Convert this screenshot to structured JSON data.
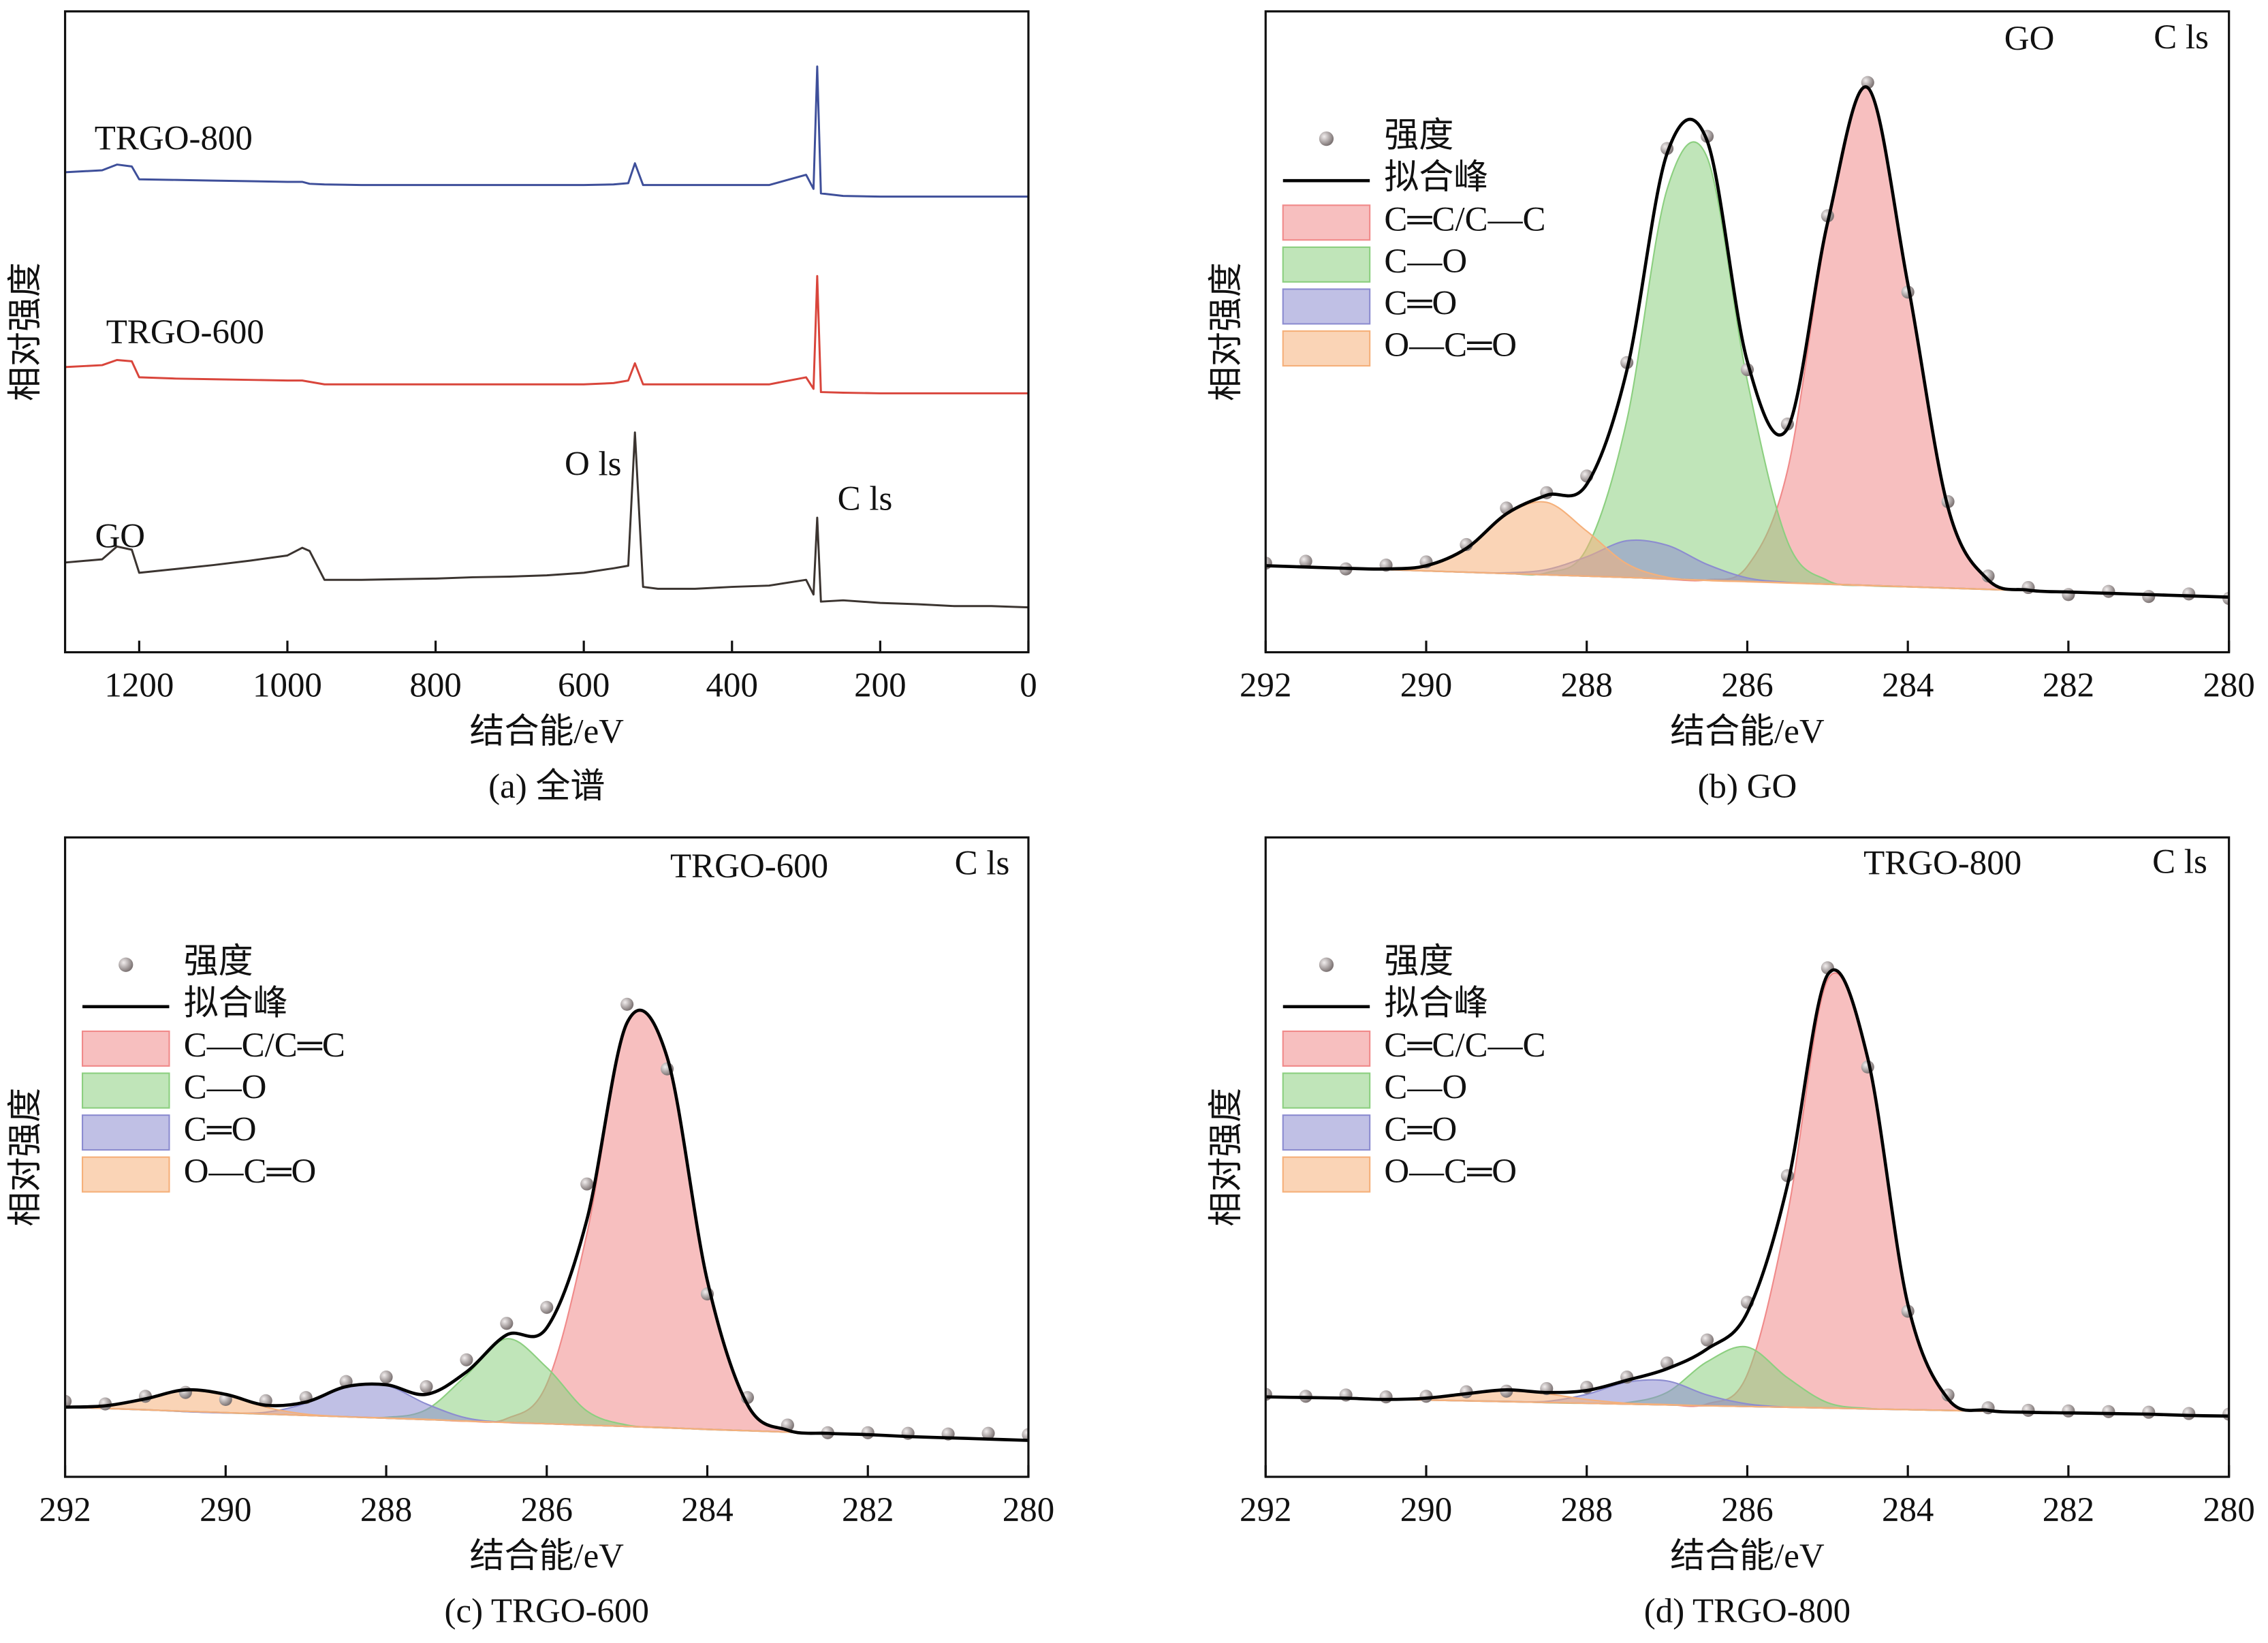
{
  "chart_data": [
    {
      "type": "line",
      "title": "(a) 全谱",
      "x_label": "结合能/eV",
      "y_label": "相对强度",
      "annotations": [
        "O ls",
        "C ls"
      ],
      "x": [
        1300,
        1250,
        1230,
        1210,
        1200,
        1150,
        1100,
        1050,
        1000,
        980,
        970,
        950,
        900,
        850,
        800,
        750,
        700,
        650,
        600,
        560,
        540,
        531,
        520,
        500,
        450,
        400,
        350,
        300,
        290,
        285,
        280,
        250,
        200,
        150,
        100,
        50,
        0
      ],
      "xlim": [
        1300,
        0
      ],
      "xticks": [
        1200,
        1000,
        800,
        600,
        400,
        200,
        0
      ],
      "ylim": [
        0,
        100
      ],
      "series": [
        {
          "name": "GO",
          "color": "#3b3430",
          "values": [
            14.0,
            14.5,
            16.5,
            16.0,
            12.4,
            13.0,
            13.6,
            14.3,
            15.1,
            16.3,
            15.8,
            11.3,
            11.3,
            11.4,
            11.5,
            11.7,
            11.8,
            12.0,
            12.4,
            13.1,
            13.5,
            34.3,
            10.2,
            9.9,
            9.9,
            10.2,
            10.4,
            11.3,
            9.0,
            21.0,
            7.9,
            8.1,
            7.7,
            7.5,
            7.2,
            7.2,
            7.0
          ]
        },
        {
          "name": "TRGO-600",
          "color": "#d9453b",
          "values": [
            44.5,
            44.8,
            45.6,
            45.4,
            42.9,
            42.7,
            42.6,
            42.5,
            42.4,
            42.4,
            42.2,
            41.8,
            41.8,
            41.8,
            41.8,
            41.8,
            41.8,
            41.8,
            41.8,
            42.0,
            42.4,
            45.1,
            41.8,
            41.8,
            41.8,
            41.8,
            41.8,
            42.9,
            41.1,
            58.7,
            40.6,
            40.5,
            40.4,
            40.4,
            40.4,
            40.4,
            40.4
          ]
        },
        {
          "name": "TRGO-800",
          "color": "#3e4f9a",
          "values": [
            74.9,
            75.2,
            76.1,
            75.8,
            73.8,
            73.7,
            73.6,
            73.5,
            73.4,
            73.4,
            73.1,
            73.0,
            72.9,
            72.9,
            72.9,
            72.9,
            72.9,
            72.9,
            72.9,
            73.0,
            73.2,
            76.3,
            72.9,
            72.9,
            72.9,
            72.9,
            72.9,
            74.5,
            72.3,
            91.4,
            71.6,
            71.2,
            71.1,
            71.1,
            71.1,
            71.1,
            71.1
          ]
        }
      ]
    },
    {
      "type": "area",
      "title": "(b) GO",
      "x_label": "结合能/eV",
      "y_label": "相对强度",
      "annotations": [
        "GO",
        "C ls"
      ],
      "legend": "upper left",
      "x": [
        292,
        291.5,
        291,
        290.5,
        290,
        289.5,
        289,
        288.5,
        288,
        287.5,
        287,
        286.5,
        286,
        285.5,
        285,
        284.5,
        284,
        283.5,
        283,
        282.5,
        282,
        281.5,
        281,
        280.5,
        280
      ],
      "xlim": [
        292,
        280
      ],
      "xticks": [
        292,
        290,
        288,
        286,
        284,
        282,
        280
      ],
      "ylim": [
        0,
        100
      ],
      "series": [
        {
          "name": "强度",
          "type": "scatter",
          "color": "#7d7474",
          "values": [
            13.9,
            14.2,
            13.0,
            13.6,
            14.1,
            16.8,
            22.5,
            24.9,
            27.5,
            45.2,
            78.6,
            80.5,
            44.1,
            35.6,
            68.1,
            88.9,
            56.2,
            23.5,
            11.9,
            10.1,
            9.0,
            9.5,
            8.7,
            9.1,
            8.4
          ]
        },
        {
          "name": "拟合峰",
          "type": "line",
          "color": "#000000",
          "values": [
            13.5,
            13.3,
            13.1,
            13.0,
            13.5,
            16.2,
            21.6,
            24.5,
            26.2,
            44.0,
            77.8,
            79.8,
            45.4,
            34.9,
            67.0,
            88.1,
            57.5,
            22.6,
            11.3,
            9.7,
            9.4,
            9.2,
            9.0,
            8.8,
            8.6
          ]
        },
        {
          "name": "C═C/C—C",
          "type": "area",
          "color": "#f08a8a",
          "values": [
            13.5,
            13.3,
            13.1,
            12.9,
            12.7,
            12.5,
            12.3,
            12.1,
            11.9,
            11.7,
            11.4,
            11.3,
            13.4,
            28.3,
            66.4,
            88.1,
            57.5,
            22.6,
            11.3,
            9.7,
            9.4,
            9.2,
            9.0,
            8.8,
            8.6
          ]
        },
        {
          "name": "C—O",
          "type": "area",
          "color": "#8ccf80",
          "values": [
            13.5,
            13.3,
            13.1,
            12.9,
            12.7,
            12.5,
            12.3,
            12.4,
            16.2,
            36.2,
            72.2,
            77.2,
            42.4,
            17.3,
            11.2,
            10.4,
            10.2,
            10.0,
            9.8,
            9.6,
            9.4,
            9.2,
            9.0,
            8.8,
            8.6
          ]
        },
        {
          "name": "C═O",
          "type": "area",
          "color": "#8c8cd0",
          "values": [
            13.5,
            13.3,
            13.1,
            12.9,
            12.7,
            12.5,
            12.4,
            12.9,
            14.9,
            17.4,
            16.7,
            13.7,
            11.6,
            10.9,
            10.6,
            10.4,
            10.2,
            10.0,
            9.8,
            9.6,
            9.4,
            9.2,
            9.0,
            8.8,
            8.6
          ]
        },
        {
          "name": "O—C═O",
          "type": "area",
          "color": "#f5b07a",
          "values": [
            13.5,
            13.3,
            13.1,
            13.0,
            13.5,
            16.2,
            21.5,
            23.4,
            18.9,
            13.8,
            11.7,
            11.2,
            11.0,
            10.8,
            10.6,
            10.4,
            10.2,
            10.0,
            9.8,
            9.6,
            9.4,
            9.2,
            9.0,
            8.8,
            8.6
          ]
        }
      ]
    },
    {
      "type": "area",
      "title": "(c) TRGO-600",
      "x_label": "结合能/eV",
      "y_label": "相对强度",
      "annotations": [
        "TRGO-600",
        "C ls"
      ],
      "legend": "upper left",
      "x": [
        292,
        291.5,
        291,
        290.5,
        290,
        289.5,
        289,
        288.5,
        288,
        287.5,
        287,
        286.5,
        286,
        285.5,
        285,
        284.5,
        284,
        283.5,
        283,
        282.5,
        282,
        281.5,
        281,
        280.5,
        280
      ],
      "xlim": [
        292,
        280
      ],
      "xticks": [
        292,
        290,
        288,
        286,
        284,
        282,
        280
      ],
      "ylim": [
        0,
        100
      ],
      "series": [
        {
          "name": "强度",
          "type": "scatter",
          "color": "#7d7474",
          "values": [
            11.8,
            11.4,
            12.6,
            13.2,
            12.1,
            11.9,
            12.4,
            14.9,
            15.6,
            14.1,
            18.3,
            24.0,
            26.5,
            45.8,
            73.9,
            63.8,
            28.6,
            12.4,
            8.1,
            6.9,
            6.9,
            6.8,
            6.7,
            6.8,
            6.6
          ]
        },
        {
          "name": "拟合峰",
          "type": "line",
          "color": "#000000",
          "values": [
            10.9,
            11.1,
            12.2,
            13.6,
            12.9,
            11.2,
            11.7,
            14.1,
            14.4,
            12.9,
            16.4,
            22.2,
            23.3,
            40.2,
            71.0,
            65.6,
            30.7,
            11.3,
            7.3,
            6.8,
            6.6,
            6.3,
            6.1,
            5.9,
            5.7
          ]
        },
        {
          "name": "C—C/C═C",
          "type": "area",
          "color": "#f08a8a",
          "values": [
            10.9,
            10.7,
            10.5,
            10.2,
            10.0,
            9.8,
            9.6,
            9.4,
            9.2,
            9.0,
            8.7,
            9.1,
            14.5,
            38.0,
            70.8,
            65.6,
            30.7,
            11.3,
            7.3,
            6.8,
            6.6,
            6.3,
            6.1,
            5.9,
            5.7
          ]
        },
        {
          "name": "C—O",
          "type": "area",
          "color": "#8ccf80",
          "values": [
            10.9,
            10.7,
            10.5,
            10.2,
            10.0,
            9.8,
            9.6,
            9.4,
            9.3,
            10.5,
            15.9,
            21.6,
            17.1,
            10.3,
            8.1,
            7.7,
            7.4,
            7.2,
            7.0,
            6.8,
            6.6,
            6.3,
            6.1,
            5.9,
            5.7
          ]
        },
        {
          "name": "C═O",
          "type": "area",
          "color": "#8c8cd0",
          "values": [
            10.9,
            10.7,
            10.5,
            10.2,
            10.0,
            10.1,
            11.5,
            14.1,
            14.3,
            11.4,
            9.2,
            8.5,
            8.3,
            8.1,
            7.9,
            7.7,
            7.4,
            7.2,
            7.0,
            6.8,
            6.6,
            6.3,
            6.1,
            5.9,
            5.7
          ]
        },
        {
          "name": "O—C═O",
          "type": "area",
          "color": "#f5b07a",
          "values": [
            10.9,
            11.1,
            12.2,
            13.6,
            12.9,
            10.9,
            9.8,
            9.4,
            9.2,
            9.0,
            8.7,
            8.5,
            8.3,
            8.1,
            7.9,
            7.7,
            7.4,
            7.2,
            7.0,
            6.8,
            6.6,
            6.3,
            6.1,
            5.9,
            5.7
          ]
        }
      ]
    },
    {
      "type": "area",
      "title": "(d) TRGO-800",
      "x_label": "结合能/eV",
      "y_label": "相对强度",
      "annotations": [
        "TRGO-800",
        "C ls"
      ],
      "legend": "upper left",
      "x": [
        292,
        291.5,
        291,
        290.5,
        290,
        289.5,
        289,
        288.5,
        288,
        287.5,
        287,
        286.5,
        286,
        285.5,
        285,
        284.5,
        284,
        283.5,
        283,
        282.5,
        282,
        281.5,
        281,
        280.5,
        280
      ],
      "xlim": [
        292,
        280
      ],
      "xticks": [
        292,
        290,
        288,
        286,
        284,
        282,
        280
      ],
      "ylim": [
        0,
        100
      ],
      "series": [
        {
          "name": "强度",
          "type": "scatter",
          "color": "#7d7474",
          "values": [
            12.9,
            12.6,
            12.8,
            12.5,
            12.6,
            13.3,
            13.4,
            13.8,
            14.0,
            15.6,
            17.8,
            21.4,
            27.3,
            47.1,
            79.6,
            64.1,
            25.9,
            12.8,
            10.8,
            10.4,
            10.3,
            10.2,
            10.1,
            9.9,
            9.8
          ]
        },
        {
          "name": "拟合峰",
          "type": "line",
          "color": "#000000",
          "values": [
            12.5,
            12.4,
            12.3,
            12.1,
            12.3,
            13.0,
            13.6,
            13.2,
            13.5,
            15.1,
            16.9,
            20.0,
            25.7,
            45.6,
            78.5,
            65.5,
            27.0,
            12.2,
            10.4,
            10.1,
            10.0,
            9.9,
            9.8,
            9.6,
            9.5
          ]
        },
        {
          "name": "C═C/C—C",
          "type": "area",
          "color": "#f08a8a",
          "values": [
            12.5,
            12.4,
            12.3,
            12.1,
            12.0,
            11.9,
            11.8,
            11.6,
            11.5,
            11.4,
            11.3,
            11.4,
            16.0,
            41.0,
            77.7,
            65.4,
            27.0,
            12.2,
            10.4,
            10.1,
            10.0,
            9.9,
            9.8,
            9.6,
            9.5
          ]
        },
        {
          "name": "C—O",
          "type": "area",
          "color": "#8ccf80",
          "values": [
            12.5,
            12.4,
            12.3,
            12.1,
            12.0,
            11.9,
            11.8,
            11.6,
            11.5,
            11.6,
            13.2,
            18.0,
            20.3,
            15.5,
            11.6,
            10.7,
            10.5,
            10.4,
            10.3,
            10.1,
            10.0,
            9.9,
            9.8,
            9.6,
            9.5
          ]
        },
        {
          "name": "C═O",
          "type": "area",
          "color": "#8c8cd0",
          "values": [
            12.5,
            12.4,
            12.3,
            12.1,
            12.0,
            11.9,
            11.8,
            11.8,
            12.9,
            14.8,
            15.0,
            12.8,
            11.4,
            10.9,
            10.8,
            10.6,
            10.5,
            10.4,
            10.3,
            10.1,
            10.0,
            9.9,
            9.8,
            9.6,
            9.5
          ]
        },
        {
          "name": "O—C═O",
          "type": "area",
          "color": "#f5b07a",
          "values": [
            12.5,
            12.4,
            12.3,
            12.1,
            12.3,
            13.0,
            13.6,
            13.0,
            12.1,
            11.5,
            11.3,
            11.1,
            11.0,
            10.9,
            10.8,
            10.6,
            10.5,
            10.4,
            10.3,
            10.1,
            10.0,
            9.9,
            9.8,
            9.6,
            9.5
          ]
        }
      ]
    }
  ]
}
